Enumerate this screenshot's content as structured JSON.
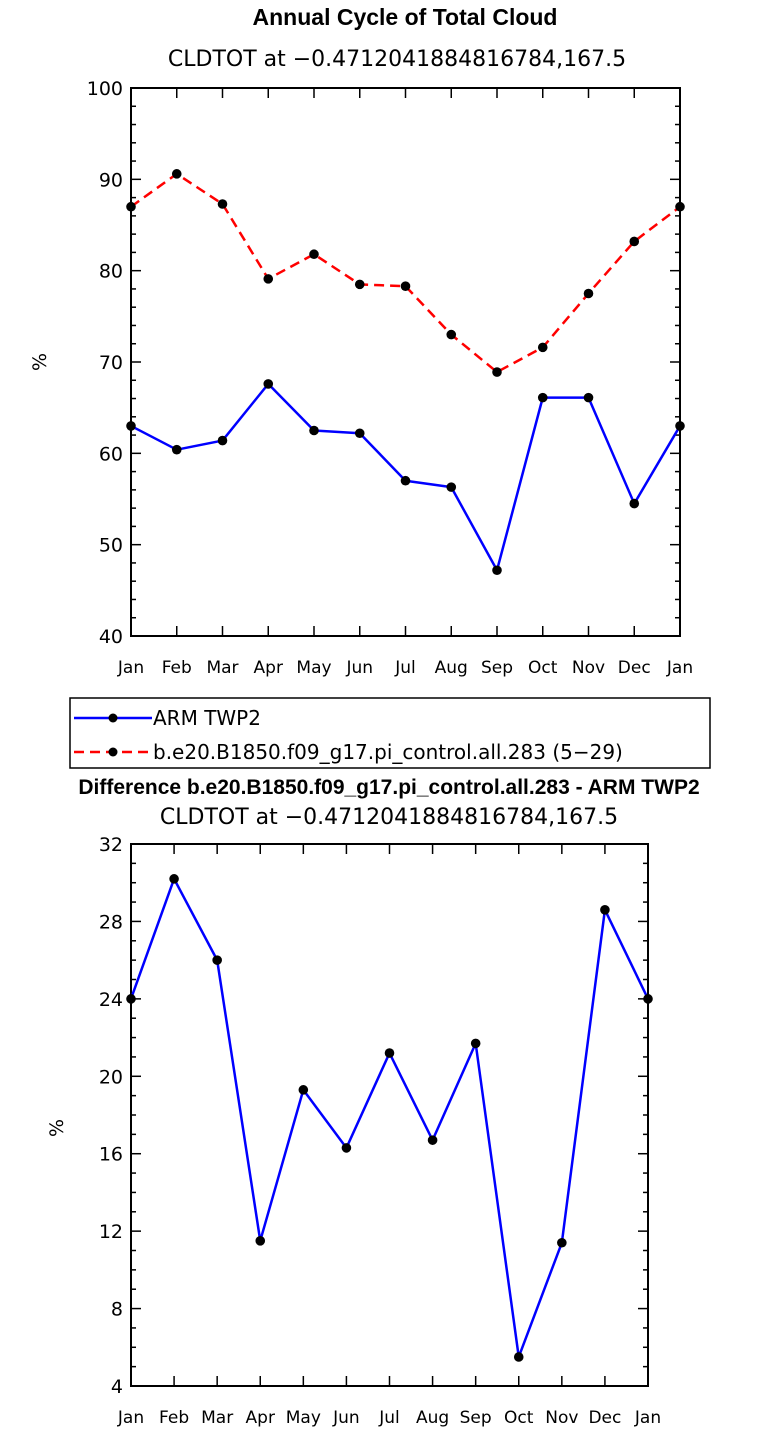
{
  "chart_data": [
    {
      "type": "line",
      "title": "Annual Cycle of Total Cloud",
      "subtitle": "CLDTOT at −0.4712041884816784,167.5",
      "ylabel": "%",
      "xlabel": "",
      "categories": [
        "Jan",
        "Feb",
        "Mar",
        "Apr",
        "May",
        "Jun",
        "Jul",
        "Aug",
        "Sep",
        "Oct",
        "Nov",
        "Dec",
        "Jan"
      ],
      "ylim": [
        40,
        100
      ],
      "yticks": [
        "40",
        "50",
        "60",
        "70",
        "80",
        "90",
        "100"
      ],
      "series": [
        {
          "name": "ARM TWP2",
          "color": "#0000ff",
          "dash": "solid",
          "values": [
            63.0,
            60.4,
            61.4,
            67.6,
            62.5,
            62.2,
            57.0,
            56.3,
            47.2,
            66.1,
            66.1,
            54.5,
            63.0
          ]
        },
        {
          "name": "b.e20.B1850.f09_g17.pi_control.all.283 (5−29)",
          "color": "#ff0000",
          "dash": "dashed",
          "values": [
            87.0,
            90.6,
            87.3,
            79.1,
            81.8,
            78.5,
            78.3,
            73.0,
            68.9,
            71.6,
            77.5,
            83.2,
            87.0
          ]
        }
      ],
      "legend": [
        "ARM TWP2",
        "b.e20.B1850.f09_g17.pi_control.all.283 (5−29)"
      ]
    },
    {
      "type": "line",
      "title": "Difference b.e20.B1850.f09_g17.pi_control.all.283 - ARM TWP2",
      "subtitle": "CLDTOT at −0.4712041884816784,167.5",
      "ylabel": "%",
      "xlabel": "",
      "categories": [
        "Jan",
        "Feb",
        "Mar",
        "Apr",
        "May",
        "Jun",
        "Jul",
        "Aug",
        "Sep",
        "Oct",
        "Nov",
        "Dec",
        "Jan"
      ],
      "ylim": [
        4,
        32
      ],
      "yticks": [
        "4",
        "8",
        "12",
        "16",
        "20",
        "24",
        "28",
        "32"
      ],
      "series": [
        {
          "name": "Difference",
          "color": "#0000ff",
          "dash": "solid",
          "values": [
            24.0,
            30.2,
            26.0,
            11.5,
            19.3,
            16.3,
            21.2,
            16.7,
            21.7,
            5.5,
            11.4,
            28.6,
            24.0
          ]
        }
      ]
    }
  ]
}
